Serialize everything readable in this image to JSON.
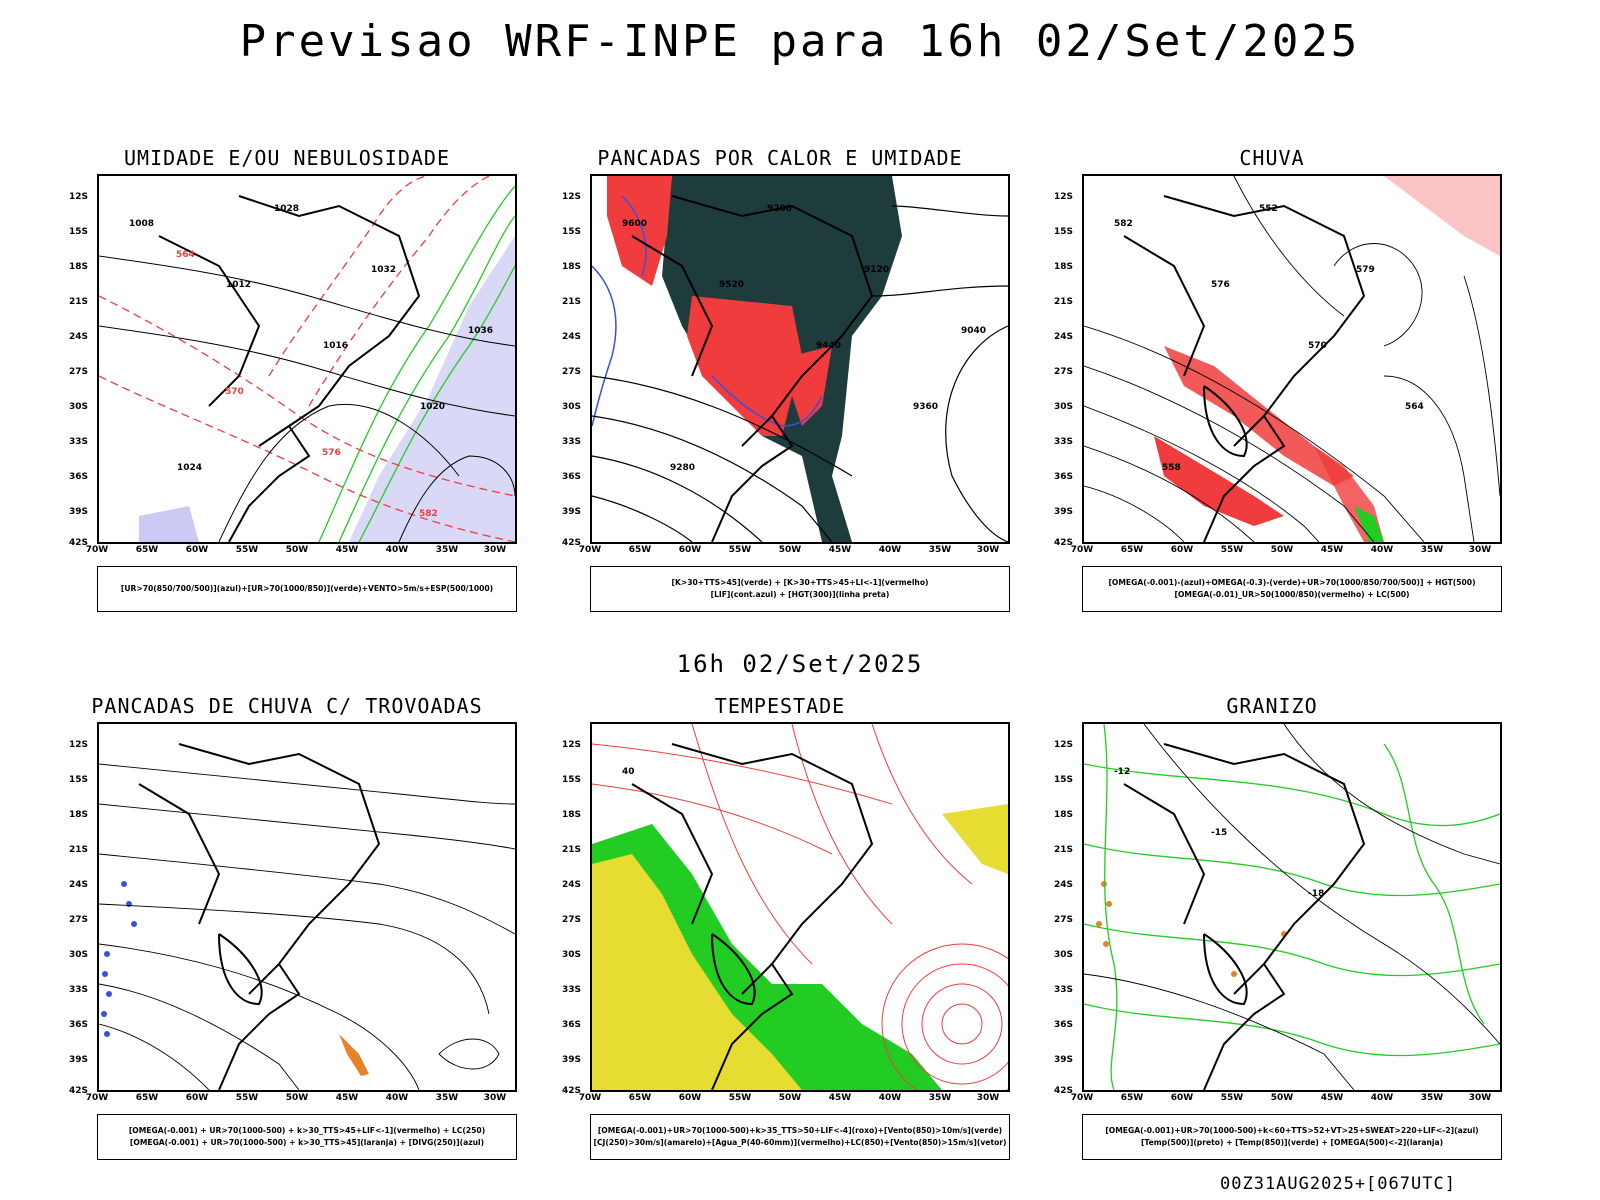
{
  "header": {
    "title": "Previsao WRF-INPE  para 16h 02/Set/2025",
    "subtitle": "16h 02/Set/2025",
    "footer": "00Z31AUG2025+[067UTC]"
  },
  "axes": {
    "lat_labels": [
      "12S",
      "15S",
      "18S",
      "21S",
      "24S",
      "27S",
      "30S",
      "33S",
      "36S",
      "39S",
      "42S"
    ],
    "lon_labels": [
      "70W",
      "65W",
      "60W",
      "55W",
      "50W",
      "45W",
      "40W",
      "35W",
      "30W"
    ]
  },
  "colors": {
    "red": "#f03c3c",
    "green": "#22cc22",
    "blue": "#3a4fe0",
    "lavender": "#b4b4f0",
    "darkteal": "#1e3c3c",
    "yellow": "#e6dc32",
    "orange": "#e68228"
  },
  "panels": [
    {
      "title": "UMIDADE E/OU NEBULOSIDADE",
      "legend": [
        "[UR>70(850/700/500)](azul)+[UR>70(1000/850)](verde)+VENTO>5m/s+ESP(500/1000)"
      ],
      "labels": [
        "1008",
        "1012",
        "1016",
        "1020",
        "1024",
        "1028",
        "1032",
        "1036",
        "570",
        "576",
        "582",
        "564"
      ]
    },
    {
      "title": "PANCADAS POR CALOR E UMIDADE",
      "legend": [
        "[K>30+TTS>45](verde) + [K>30+TTS>45+LI<-1](vermelho)",
        "[LIF](cont.azul) + [HGT(300)](linha preta)"
      ],
      "labels": [
        "9600",
        "9520",
        "9440",
        "9360",
        "9280",
        "9200",
        "9120",
        "9040"
      ]
    },
    {
      "title": "CHUVA",
      "legend": [
        "[OMEGA(-0.001)-(azul)+OMEGA(-0.3)-(verde)+UR>70(1000/850/700/500)] + HGT(500)",
        "[OMEGA(-0.01)_UR>50(1000/850)(vermelho) + LC(500)"
      ],
      "labels": [
        "582",
        "576",
        "570",
        "564",
        "558",
        "552",
        "579"
      ]
    },
    {
      "title": "PANCADAS DE CHUVA C/ TROVOADAS",
      "legend": [
        "[OMEGA(-0.001) + UR>70(1000-500) + k>30_TTS>45+LIF<-1](vermelho) + LC(250)",
        "[OMEGA(-0.001) + UR>70(1000-500) + k>30_TTS>45](laranja) + [DIVG(250)](azul)"
      ],
      "labels": []
    },
    {
      "title": "TEMPESTADE",
      "legend": [
        "[OMEGA(-0.001)+UR>70(1000-500)+k>35_TTS>50+LIF<-4](roxo)+[Vento(850)>10m/s](verde)",
        "[CJ(250)>30m/s](amarelo)+[Agua_P(40-60mm)](vermelho)+LC(850)+[Vento(850)>15m/s](vetor)"
      ],
      "labels": [
        "40"
      ]
    },
    {
      "title": "GRANIZO",
      "legend": [
        "[OMEGA(-0.001)+UR>70(1000-500)+k<60+TTS>52+VT>25+SWEAT>220+LIF<-2](azul)",
        "[Temp(500)](preto) + [Temp(850)](verde) + [OMEGA(500)<-2](laranja)"
      ],
      "labels": [
        "-12",
        "-15",
        "-18"
      ]
    }
  ]
}
